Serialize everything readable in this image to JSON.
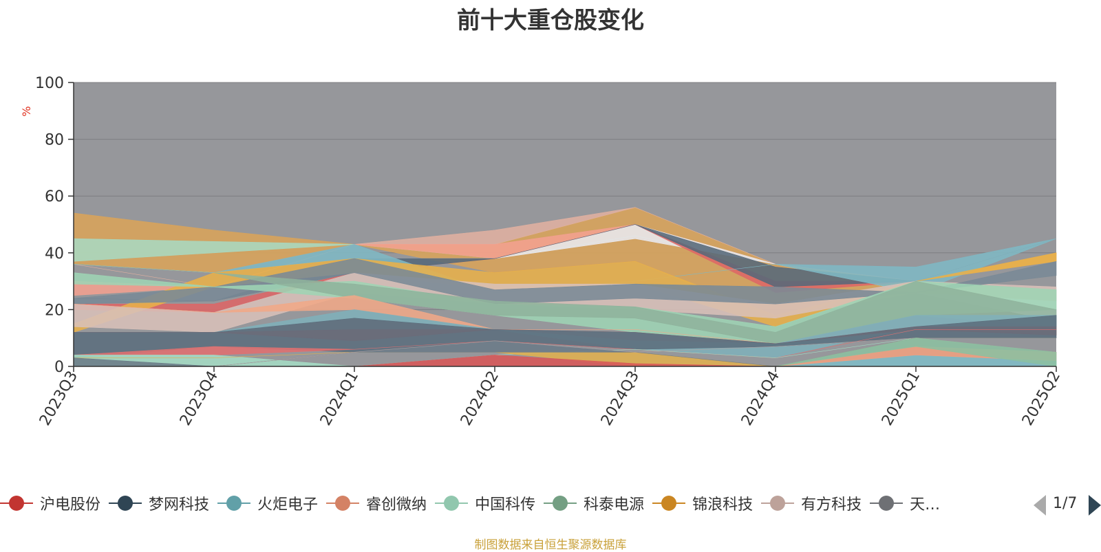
{
  "title": "前十大重仓股变化",
  "footer": "制图数据来自恒生聚源数据库",
  "pager": {
    "text": "1/7"
  },
  "colors": {
    "plot_background": "#96979b",
    "axis": "#333333",
    "unit_label": "#e0301e",
    "footer": "#c9a13a"
  },
  "legend": [
    {
      "label": "沪电股份",
      "color": "#c23531"
    },
    {
      "label": "梦网科技",
      "color": "#2f4554"
    },
    {
      "label": "火炬电子",
      "color": "#61a0a8"
    },
    {
      "label": "睿创微纳",
      "color": "#d48265"
    },
    {
      "label": "中国科传",
      "color": "#91c7ae"
    },
    {
      "label": "科泰电源",
      "color": "#749f83"
    },
    {
      "label": "锦浪科技",
      "color": "#ca8622"
    },
    {
      "label": "有方科技",
      "color": "#bda29a"
    },
    {
      "label": "天…",
      "color": "#6e7074"
    }
  ],
  "chart_data": {
    "type": "area",
    "title": "前十大重仓股变化",
    "ylabel": "%",
    "ylim": [
      0,
      100
    ],
    "yticks": [
      0,
      20,
      40,
      60,
      80,
      100
    ],
    "grid": true,
    "stacked": false,
    "categories": [
      "2023Q3",
      "2023Q4",
      "2024Q1",
      "2024Q2",
      "2024Q3",
      "2024Q4",
      "2025Q1",
      "2025Q2"
    ],
    "series": [
      {
        "color": "#d9a45a",
        "values": [
          [
            54,
            36
          ],
          [
            48,
            33
          ],
          [
            43,
            43
          ],
          [
            43,
            33
          ],
          [
            56,
            37
          ],
          [
            36,
            17
          ],
          [
            30,
            30
          ],
          [
            40,
            37
          ]
        ]
      },
      {
        "color": "#a8d8c0",
        "values": [
          [
            45,
            37
          ],
          [
            44,
            40
          ],
          [
            43,
            43
          ],
          [
            38,
            38
          ],
          [
            46,
            46
          ],
          [
            36,
            36
          ],
          [
            30,
            30
          ],
          [
            45,
            45
          ]
        ]
      },
      {
        "color": "#e0b0a0",
        "values": [
          [
            36,
            36
          ],
          [
            28,
            28
          ],
          [
            43,
            43
          ],
          [
            48,
            43
          ],
          [
            56,
            56
          ],
          [
            36,
            36
          ],
          [
            30,
            30
          ],
          [
            45,
            45
          ]
        ]
      },
      {
        "color": "#f2a090",
        "values": [
          [
            30,
            25
          ],
          [
            28,
            28
          ],
          [
            43,
            43
          ],
          [
            43,
            38
          ],
          [
            50,
            50
          ],
          [
            36,
            36
          ],
          [
            30,
            30
          ],
          [
            45,
            45
          ]
        ]
      },
      {
        "color": "#e8e8ee",
        "values": [
          [
            36,
            36
          ],
          [
            33,
            33
          ],
          [
            38,
            38
          ],
          [
            38,
            38
          ],
          [
            50,
            45
          ],
          [
            36,
            36
          ],
          [
            26,
            26
          ],
          [
            23,
            16
          ]
        ]
      },
      {
        "color": "#dd6666",
        "values": [
          [
            22,
            20
          ],
          [
            22,
            19
          ],
          [
            33,
            33
          ],
          [
            38,
            38
          ],
          [
            50,
            50
          ],
          [
            30,
            26
          ],
          [
            30,
            30
          ],
          [
            45,
            45
          ]
        ]
      },
      {
        "color": "#57697a",
        "values": [
          [
            24,
            24
          ],
          [
            23,
            23
          ],
          [
            38,
            33
          ],
          [
            38,
            38
          ],
          [
            50,
            50
          ],
          [
            35,
            28
          ],
          [
            30,
            30
          ],
          [
            45,
            45
          ]
        ]
      },
      {
        "color": "#7fb8c4",
        "values": [
          [
            36,
            36
          ],
          [
            33,
            33
          ],
          [
            43,
            38
          ],
          [
            26,
            26
          ],
          [
            30,
            30
          ],
          [
            36,
            36
          ],
          [
            35,
            26
          ],
          [
            45,
            45
          ]
        ]
      },
      {
        "color": "#e8b04a",
        "values": [
          [
            15,
            12
          ],
          [
            33,
            28
          ],
          [
            38,
            33
          ],
          [
            33,
            27
          ],
          [
            37,
            29
          ],
          [
            18,
            14
          ],
          [
            30,
            30
          ],
          [
            40,
            37
          ]
        ]
      },
      {
        "color": "#d8c0b8",
        "values": [
          [
            22,
            14
          ],
          [
            19,
            12
          ],
          [
            33,
            26
          ],
          [
            29,
            22
          ],
          [
            29,
            20
          ],
          [
            22,
            17
          ],
          [
            30,
            26
          ],
          [
            28,
            23
          ]
        ]
      },
      {
        "color": "#7a8a96",
        "values": [
          [
            24,
            22
          ],
          [
            28,
            23
          ],
          [
            38,
            33
          ],
          [
            27,
            22
          ],
          [
            29,
            24
          ],
          [
            28,
            22
          ],
          [
            26,
            26
          ],
          [
            37,
            32
          ]
        ]
      },
      {
        "color": "#9ed4b4",
        "values": [
          [
            33,
            29
          ],
          [
            28,
            28
          ],
          [
            30,
            24
          ],
          [
            22,
            18
          ],
          [
            21,
            12
          ],
          [
            14,
            8
          ],
          [
            30,
            18
          ],
          [
            27,
            20
          ]
        ]
      },
      {
        "color": "#8fb39c",
        "values": [
          [
            36,
            36
          ],
          [
            33,
            33
          ],
          [
            29,
            24
          ],
          [
            23,
            18
          ],
          [
            21,
            17
          ],
          [
            12,
            8
          ],
          [
            30,
            18
          ],
          [
            20,
            14
          ]
        ]
      },
      {
        "color": "#f0a888",
        "values": [
          [
            22,
            22
          ],
          [
            19,
            19
          ],
          [
            25,
            20
          ],
          [
            13,
            13
          ],
          [
            13,
            13
          ],
          [
            8,
            8
          ],
          [
            14,
            14
          ],
          [
            14,
            14
          ]
        ]
      },
      {
        "color": "#80b0ba",
        "values": [
          [
            12,
            12
          ],
          [
            12,
            12
          ],
          [
            20,
            17
          ],
          [
            13,
            13
          ],
          [
            9,
            6
          ],
          [
            8,
            3
          ],
          [
            18,
            14
          ],
          [
            18,
            14
          ]
        ]
      },
      {
        "color": "#cf5b5b",
        "values": [
          [
            12,
            12
          ],
          [
            12,
            12
          ],
          [
            13,
            9
          ],
          [
            13,
            13
          ],
          [
            12,
            12
          ],
          [
            8,
            8
          ],
          [
            14,
            13
          ],
          [
            14,
            11
          ]
        ]
      },
      {
        "color": "#5c6e7d",
        "values": [
          [
            12,
            3
          ],
          [
            12,
            7
          ],
          [
            17,
            5
          ],
          [
            13,
            9
          ],
          [
            12,
            6
          ],
          [
            8,
            7
          ],
          [
            14,
            10
          ],
          [
            18,
            10
          ]
        ]
      },
      {
        "color": "#e07070",
        "values": [
          [
            4,
            4
          ],
          [
            7,
            4
          ],
          [
            6,
            6
          ],
          [
            9,
            9
          ],
          [
            6,
            6
          ],
          [
            3,
            3
          ],
          [
            13,
            13
          ],
          [
            13,
            13
          ]
        ]
      },
      {
        "color": "#a5dcc4",
        "values": [
          [
            4,
            0
          ],
          [
            4,
            0
          ],
          [
            0,
            0
          ],
          [
            4,
            4
          ],
          [
            6,
            6
          ],
          [
            3,
            3
          ],
          [
            10,
            10
          ],
          [
            10,
            10
          ]
        ]
      },
      {
        "color": "#e0b050",
        "values": [
          [
            3,
            3
          ],
          [
            3,
            3
          ],
          [
            5,
            5
          ],
          [
            5,
            5
          ],
          [
            5,
            0
          ],
          [
            0,
            0
          ],
          [
            10,
            10
          ],
          [
            10,
            10
          ]
        ]
      },
      {
        "color": "#6b7b88",
        "values": [
          [
            3,
            0
          ],
          [
            0,
            0
          ],
          [
            5,
            5
          ],
          [
            9,
            5
          ],
          [
            5,
            5
          ],
          [
            0,
            0
          ],
          [
            10,
            10
          ],
          [
            10,
            10
          ]
        ]
      },
      {
        "color": "#d85858",
        "values": [
          [
            0,
            0
          ],
          [
            0,
            0
          ],
          [
            0,
            0
          ],
          [
            4,
            0
          ],
          [
            1,
            0
          ],
          [
            0,
            0
          ],
          [
            0,
            0
          ],
          [
            0,
            0
          ]
        ]
      },
      {
        "color": "#b0a0a0",
        "values": [
          [
            0,
            0
          ],
          [
            0,
            0
          ],
          [
            5,
            5
          ],
          [
            9,
            9
          ],
          [
            5,
            5
          ],
          [
            7,
            7
          ],
          [
            10,
            10
          ],
          [
            5,
            5
          ]
        ]
      },
      {
        "color": "#7fbcc6",
        "values": [
          [
            0,
            0
          ],
          [
            0,
            0
          ],
          [
            0,
            0
          ],
          [
            0,
            0
          ],
          [
            0,
            0
          ],
          [
            0,
            0
          ],
          [
            4,
            0
          ],
          [
            2,
            0
          ]
        ]
      },
      {
        "color": "#f0a080",
        "values": [
          [
            0,
            0
          ],
          [
            0,
            0
          ],
          [
            0,
            0
          ],
          [
            0,
            0
          ],
          [
            0,
            0
          ],
          [
            0,
            0
          ],
          [
            7,
            4
          ],
          [
            5,
            2
          ]
        ]
      },
      {
        "color": "#8cc0a0",
        "values": [
          [
            0,
            0
          ],
          [
            0,
            0
          ],
          [
            0,
            0
          ],
          [
            0,
            0
          ],
          [
            0,
            0
          ],
          [
            0,
            0
          ],
          [
            10,
            7
          ],
          [
            5,
            0
          ]
        ]
      }
    ]
  }
}
